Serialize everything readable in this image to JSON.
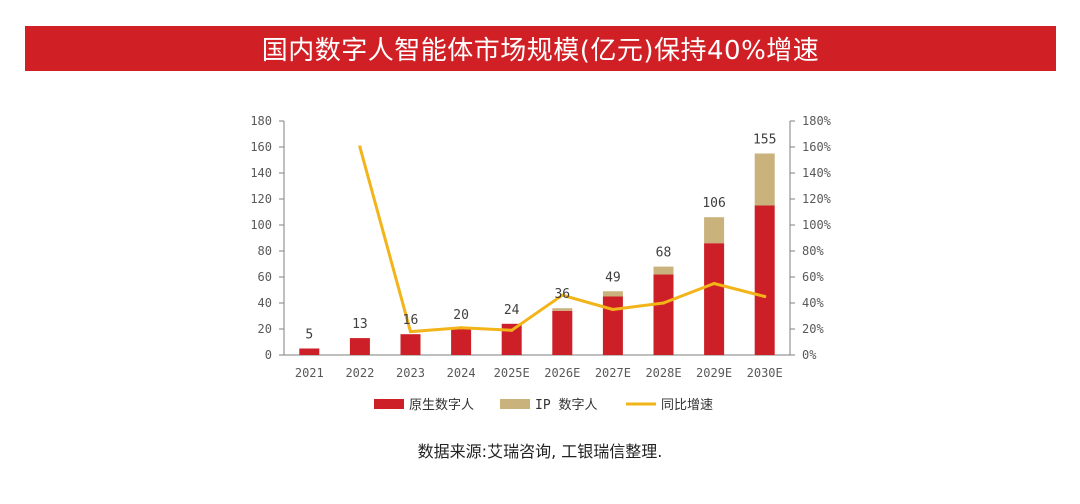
{
  "title": "国内数字人智能体市场规模(亿元)保持40%增速",
  "source": "数据来源:艾瑞咨询, 工银瑞信整理.",
  "colors": {
    "banner": "#d01f25",
    "native": "#cc1f27",
    "ip": "#c9b27c",
    "growth": "#f2b418",
    "axis": "#7f7f7f",
    "text": "#595959"
  },
  "chart_data": {
    "type": "bar",
    "stacked": true,
    "categories": [
      "2021",
      "2022",
      "2023",
      "2024",
      "2025E",
      "2026E",
      "2027E",
      "2028E",
      "2029E",
      "2030E"
    ],
    "series": [
      {
        "name": "原生数字人",
        "type": "bar",
        "axis": "left",
        "values": [
          5,
          13,
          16,
          20,
          24,
          34,
          45,
          62,
          86,
          115
        ]
      },
      {
        "name": "IP 数字人",
        "type": "bar",
        "axis": "left",
        "values": [
          0,
          0,
          0,
          0,
          0,
          2,
          4,
          6,
          20,
          40
        ]
      },
      {
        "name": "同比增速",
        "type": "line",
        "axis": "right",
        "values": [
          null,
          160,
          18,
          21,
          19,
          46,
          35,
          40,
          55,
          45
        ]
      }
    ],
    "totals": [
      5,
      13,
      16,
      20,
      24,
      36,
      49,
      68,
      106,
      155
    ],
    "left_axis": {
      "ticks": [
        "0",
        "20",
        "40",
        "60",
        "80",
        "100",
        "120",
        "140",
        "160",
        "180"
      ],
      "ylim": [
        0,
        180
      ]
    },
    "right_axis": {
      "ticks": [
        "0%",
        "20%",
        "40%",
        "60%",
        "80%",
        "100%",
        "120%",
        "140%",
        "160%",
        "180%"
      ],
      "ylim": [
        0,
        180
      ]
    },
    "legend_position": "bottom"
  }
}
